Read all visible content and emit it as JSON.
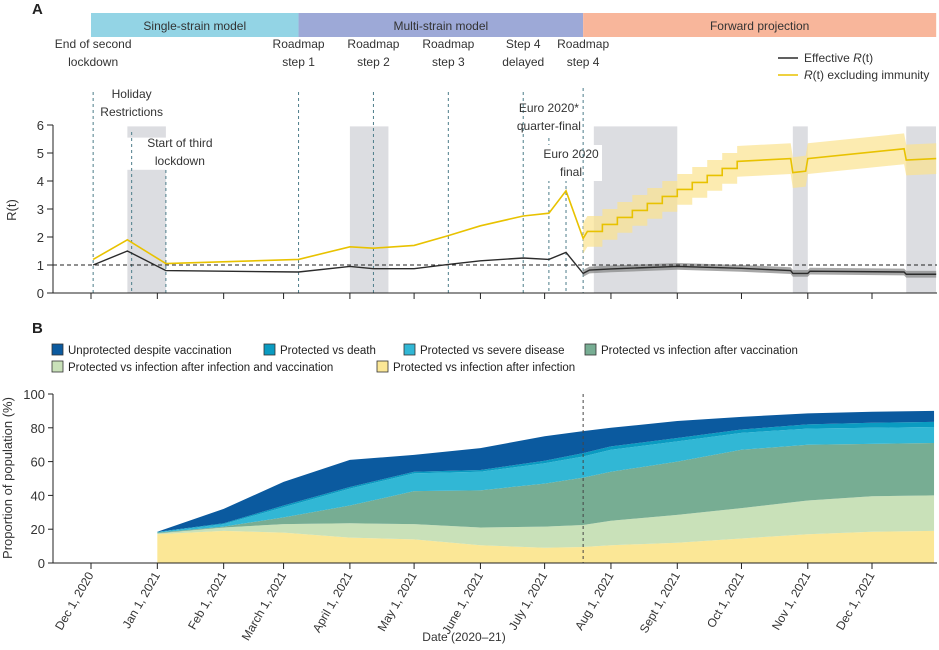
{
  "panel_labels": {
    "a": "A",
    "b": "B"
  },
  "chart_data": [
    {
      "type": "line",
      "panel": "A",
      "ylabel": "R(t)",
      "ylim": [
        0,
        6
      ],
      "yticks": [
        "0",
        "1",
        "2",
        "3",
        "4",
        "5",
        "6"
      ],
      "xlim": [
        "2020-11-13",
        "2021-12-31"
      ],
      "reference_line": 1,
      "phases": [
        {
          "label": "Single-strain model",
          "start": "2020-12-01",
          "end": "2021-03-08",
          "color": "#93d4e5"
        },
        {
          "label": "Multi-strain model",
          "start": "2021-03-08",
          "end": "2021-07-19",
          "color": "#9da9d7"
        },
        {
          "label": "Forward projection",
          "start": "2021-07-19",
          "end": "2021-12-31",
          "color": "#f8b69b"
        }
      ],
      "shaded_periods": [
        {
          "start": "2020-12-18",
          "end": "2021-01-05",
          "ymax": 4.4
        },
        {
          "start": "2020-12-18",
          "end": "2021-01-05",
          "ymin": 5.55,
          "ymax": 5.95
        },
        {
          "start": "2021-04-01",
          "end": "2021-04-19",
          "ymax": 5.95
        },
        {
          "start": "2021-07-24",
          "end": "2021-09-01",
          "ymax": 5.95
        },
        {
          "start": "2021-10-25",
          "end": "2021-11-01",
          "ymax": 5.95
        },
        {
          "start": "2021-12-17",
          "end": "2021-12-31",
          "ymax": 5.95
        }
      ],
      "events": [
        {
          "date": "2020-12-02",
          "label": [
            "End of second",
            "lockdown"
          ]
        },
        {
          "date": "2020-12-20",
          "label": [
            "Holiday",
            "Restrictions"
          ]
        },
        {
          "date": "2021-01-05",
          "label": [
            "Start of third",
            "lockdown"
          ]
        },
        {
          "date": "2021-03-08",
          "label": [
            "Roadmap",
            "step 1"
          ]
        },
        {
          "date": "2021-04-12",
          "label": [
            "Roadmap",
            "step 2"
          ]
        },
        {
          "date": "2021-05-17",
          "label": [
            "Roadmap",
            "step 3"
          ]
        },
        {
          "date": "2021-06-21",
          "label": [
            "Step 4",
            "delayed"
          ]
        },
        {
          "date": "2021-07-03",
          "label": [
            "Euro 2020*",
            "quarter-final"
          ]
        },
        {
          "date": "2021-07-11",
          "label": [
            "Euro 2020",
            "final"
          ]
        },
        {
          "date": "2021-07-19",
          "label": [
            "Roadmap",
            "step 4"
          ]
        }
      ],
      "series": [
        {
          "name": "Effective R(t)",
          "color": "#2b2b2b",
          "band_color": "#8a8a8a",
          "band_from": "2021-07-19",
          "band_halfwidth": 0.12,
          "points": [
            [
              "2020-12-02",
              1.0
            ],
            [
              "2020-12-18",
              1.5
            ],
            [
              "2021-01-05",
              0.8
            ],
            [
              "2021-03-08",
              0.75
            ],
            [
              "2021-04-01",
              0.95
            ],
            [
              "2021-04-12",
              0.87
            ],
            [
              "2021-05-01",
              0.87
            ],
            [
              "2021-05-17",
              1.02
            ],
            [
              "2021-06-01",
              1.15
            ],
            [
              "2021-06-21",
              1.25
            ],
            [
              "2021-07-03",
              1.2
            ],
            [
              "2021-07-11",
              1.45
            ],
            [
              "2021-07-19",
              0.7
            ],
            [
              "2021-07-22",
              0.82
            ],
            [
              "2021-08-01",
              0.86
            ],
            [
              "2021-09-01",
              0.95
            ],
            [
              "2021-10-01",
              0.88
            ],
            [
              "2021-10-24",
              0.8
            ],
            [
              "2021-10-25",
              0.7
            ],
            [
              "2021-11-01",
              0.7
            ],
            [
              "2021-11-02",
              0.78
            ],
            [
              "2021-12-16",
              0.75
            ],
            [
              "2021-12-17",
              0.67
            ],
            [
              "2021-12-31",
              0.67
            ]
          ]
        },
        {
          "name": "R(t) excluding immunity",
          "color": "#e8c200",
          "band_color": "#fbe28f",
          "band_from": "2021-07-19",
          "band_halfwidth": 0.55,
          "points": [
            [
              "2020-12-02",
              1.2
            ],
            [
              "2020-12-18",
              1.9
            ],
            [
              "2021-01-05",
              1.05
            ],
            [
              "2021-03-08",
              1.2
            ],
            [
              "2021-04-01",
              1.65
            ],
            [
              "2021-04-12",
              1.6
            ],
            [
              "2021-05-01",
              1.7
            ],
            [
              "2021-05-17",
              2.05
            ],
            [
              "2021-06-01",
              2.4
            ],
            [
              "2021-06-21",
              2.75
            ],
            [
              "2021-07-03",
              2.85
            ],
            [
              "2021-07-11",
              3.65
            ],
            [
              "2021-07-19",
              1.95
            ],
            [
              "2021-07-21",
              2.2
            ],
            [
              "2021-07-28",
              2.2
            ],
            [
              "2021-07-28",
              2.45
            ],
            [
              "2021-08-04",
              2.45
            ],
            [
              "2021-08-04",
              2.7
            ],
            [
              "2021-08-11",
              2.7
            ],
            [
              "2021-08-11",
              2.95
            ],
            [
              "2021-08-18",
              2.95
            ],
            [
              "2021-08-18",
              3.2
            ],
            [
              "2021-08-25",
              3.2
            ],
            [
              "2021-08-25",
              3.45
            ],
            [
              "2021-09-01",
              3.45
            ],
            [
              "2021-09-01",
              3.7
            ],
            [
              "2021-09-08",
              3.7
            ],
            [
              "2021-09-08",
              3.95
            ],
            [
              "2021-09-15",
              3.95
            ],
            [
              "2021-09-15",
              4.2
            ],
            [
              "2021-09-22",
              4.2
            ],
            [
              "2021-09-22",
              4.45
            ],
            [
              "2021-09-29",
              4.45
            ],
            [
              "2021-09-29",
              4.7
            ],
            [
              "2021-10-24",
              4.8
            ],
            [
              "2021-10-25",
              4.3
            ],
            [
              "2021-10-31",
              4.35
            ],
            [
              "2021-11-01",
              4.8
            ],
            [
              "2021-12-16",
              5.15
            ],
            [
              "2021-12-17",
              4.75
            ],
            [
              "2021-12-31",
              4.8
            ]
          ]
        }
      ],
      "legend": {
        "position": "top-right",
        "items": [
          {
            "prefix": "Effective ",
            "italic": "R",
            "suffix": "(t)"
          },
          {
            "prefix": "",
            "italic": "R",
            "suffix": "(t) excluding immunity"
          }
        ]
      }
    },
    {
      "type": "area",
      "stacked": true,
      "panel": "B",
      "xlabel": "Date (2020–21)",
      "ylabel": "Proportion of population (%)",
      "ylim": [
        0,
        100
      ],
      "yticks": [
        "0",
        "20",
        "40",
        "60",
        "80",
        "100"
      ],
      "xticks": [
        {
          "date": "2020-12-01",
          "label": "Dec 1, 2020"
        },
        {
          "date": "2021-01-01",
          "label": "Jan 1, 2021"
        },
        {
          "date": "2021-02-01",
          "label": "Feb 1, 2021"
        },
        {
          "date": "2021-03-01",
          "label": "March 1, 2021"
        },
        {
          "date": "2021-04-01",
          "label": "April 1, 2021"
        },
        {
          "date": "2021-05-01",
          "label": "May 1, 2021"
        },
        {
          "date": "2021-06-01",
          "label": "June 1, 2021"
        },
        {
          "date": "2021-07-01",
          "label": "July 1, 2021"
        },
        {
          "date": "2021-08-01",
          "label": "Aug 1, 2021"
        },
        {
          "date": "2021-09-01",
          "label": "Sept 1, 2021"
        },
        {
          "date": "2021-10-01",
          "label": "Oct 1, 2021"
        },
        {
          "date": "2021-11-01",
          "label": "Nov 1, 2021"
        },
        {
          "date": "2021-12-01",
          "label": "Dec 1, 2021"
        }
      ],
      "marker_line": "2021-07-19",
      "x": [
        "2021-01-01",
        "2021-02-01",
        "2021-03-01",
        "2021-04-01",
        "2021-05-01",
        "2021-06-01",
        "2021-07-01",
        "2021-07-19",
        "2021-08-01",
        "2021-09-01",
        "2021-10-01",
        "2021-11-01",
        "2021-12-01",
        "2021-12-30"
      ],
      "series": [
        {
          "name": "Protected vs infection after infection",
          "color": "#fbe796",
          "values": [
            17,
            19,
            18,
            15,
            14,
            10.5,
            9,
            9.5,
            10.5,
            12,
            14.5,
            17,
            18.5,
            19
          ]
        },
        {
          "name": "Protected vs infection after infection and vaccination",
          "color": "#c9e1b9",
          "values": [
            0.5,
            2,
            5,
            8.5,
            9,
            10.5,
            12.5,
            13,
            14.5,
            16.5,
            18,
            20,
            21,
            21
          ]
        },
        {
          "name": "Protected vs infection after vaccination",
          "color": "#77ad93",
          "values": [
            0.5,
            0.5,
            4,
            10.5,
            19.5,
            22,
            25.5,
            28,
            29,
            31.5,
            34.5,
            33,
            31,
            31
          ]
        },
        {
          "name": "Protected vs severe disease",
          "color": "#31b7d5",
          "values": [
            0.2,
            1.5,
            6,
            10,
            10.5,
            11,
            12,
            12.5,
            13,
            12,
            10,
            9.5,
            9.5,
            9.5
          ]
        },
        {
          "name": "Protected vs death",
          "color": "#0a9bc1",
          "values": [
            0.2,
            0.5,
            1,
            1,
            1,
            1,
            1.5,
            2,
            2,
            2,
            2,
            2.5,
            3,
            3
          ]
        },
        {
          "name": "Unprotected despite vaccination",
          "color": "#0b5a9f",
          "values": [
            0.1,
            8.5,
            14,
            16,
            10,
            13,
            14.5,
            13,
            11,
            10,
            7.5,
            6.5,
            6.5,
            6.5
          ]
        }
      ],
      "legend": {
        "position": "top",
        "order": [
          5,
          4,
          3,
          2,
          1,
          0
        ]
      }
    }
  ]
}
